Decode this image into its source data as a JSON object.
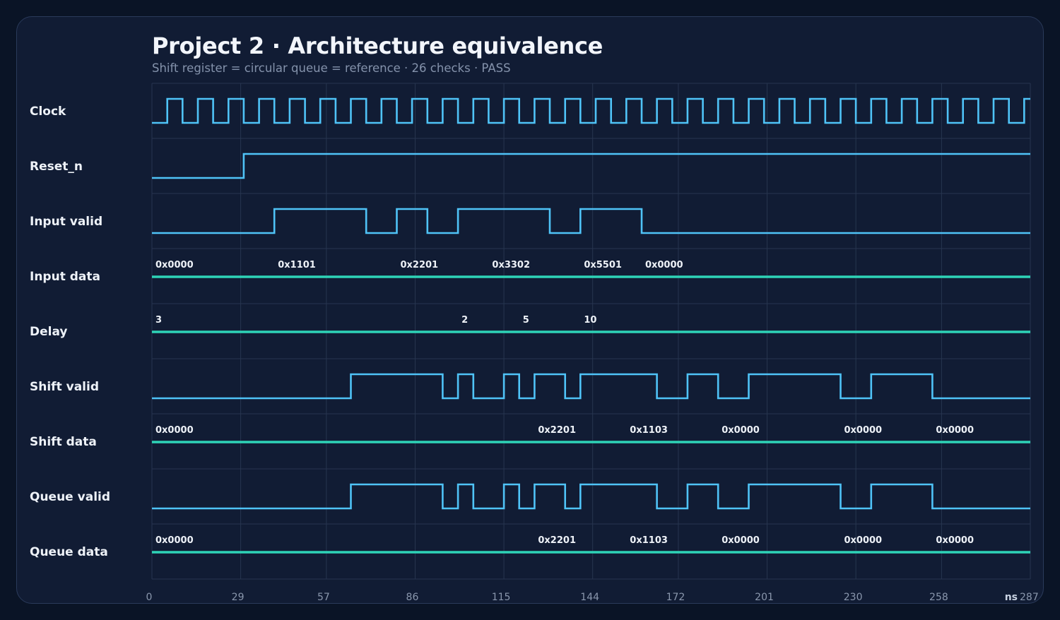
{
  "header": {
    "title": "Project 2 · Architecture equivalence",
    "subtitle": "Shift register = circular queue = reference · 26 checks · PASS"
  },
  "colors": {
    "background": "#0a1426",
    "panel": "#111c34",
    "digital_wave": "#4fc3f7",
    "bus_wave": "#2ed3b7",
    "grid": "#27354f"
  },
  "chart_data": {
    "type": "timing-diagram",
    "x_unit": "ns",
    "x_range": [
      0,
      287
    ],
    "x_ticks": [
      {
        "v": 0,
        "label": "0"
      },
      {
        "v": 29,
        "label": "29"
      },
      {
        "v": 57,
        "label": "57"
      },
      {
        "v": 86,
        "label": "86"
      },
      {
        "v": 115,
        "label": "115"
      },
      {
        "v": 144,
        "label": "144"
      },
      {
        "v": 172,
        "label": "172"
      },
      {
        "v": 201,
        "label": "201"
      },
      {
        "v": 230,
        "label": "230"
      },
      {
        "v": 258,
        "label": "258"
      },
      {
        "v": 287,
        "label": "287"
      }
    ],
    "signals": [
      {
        "name": "Clock",
        "kind": "clock",
        "period_ns": 10,
        "first_rise_ns": 5
      },
      {
        "name": "Reset_n",
        "kind": "digital",
        "initial": 0,
        "transitions": [
          30
        ]
      },
      {
        "name": "Input valid",
        "kind": "digital",
        "initial": 0,
        "transitions": [
          40,
          70,
          80,
          90,
          100,
          130,
          140,
          160
        ]
      },
      {
        "name": "Input data",
        "kind": "bus",
        "values": [
          {
            "t": 0,
            "label": "0x0000"
          },
          {
            "t": 40,
            "label": "0x1101"
          },
          {
            "t": 80,
            "label": "0x2201"
          },
          {
            "t": 110,
            "label": "0x3302"
          },
          {
            "t": 140,
            "label": "0x5501"
          },
          {
            "t": 160,
            "label": "0x0000"
          }
        ]
      },
      {
        "name": "Delay",
        "kind": "bus",
        "values": [
          {
            "t": 0,
            "label": "3"
          },
          {
            "t": 100,
            "label": "2"
          },
          {
            "t": 120,
            "label": "5"
          },
          {
            "t": 140,
            "label": "10"
          }
        ]
      },
      {
        "name": "Shift valid",
        "kind": "digital",
        "initial": 0,
        "transitions": [
          65,
          95,
          100,
          105,
          115,
          120,
          125,
          135,
          140,
          165,
          175,
          185,
          195,
          225,
          235,
          255
        ]
      },
      {
        "name": "Shift data",
        "kind": "bus",
        "values": [
          {
            "t": 0,
            "label": "0x0000"
          },
          {
            "t": 125,
            "label": "0x2201"
          },
          {
            "t": 155,
            "label": "0x1103"
          },
          {
            "t": 185,
            "label": "0x0000"
          },
          {
            "t": 225,
            "label": "0x0000"
          },
          {
            "t": 255,
            "label": "0x0000"
          }
        ]
      },
      {
        "name": "Queue valid",
        "kind": "digital",
        "initial": 0,
        "transitions": [
          65,
          95,
          100,
          105,
          115,
          120,
          125,
          135,
          140,
          165,
          175,
          185,
          195,
          225,
          235,
          255
        ]
      },
      {
        "name": "Queue data",
        "kind": "bus",
        "values": [
          {
            "t": 0,
            "label": "0x0000"
          },
          {
            "t": 125,
            "label": "0x2201"
          },
          {
            "t": 155,
            "label": "0x1103"
          },
          {
            "t": 185,
            "label": "0x0000"
          },
          {
            "t": 225,
            "label": "0x0000"
          },
          {
            "t": 255,
            "label": "0x0000"
          }
        ]
      }
    ]
  }
}
